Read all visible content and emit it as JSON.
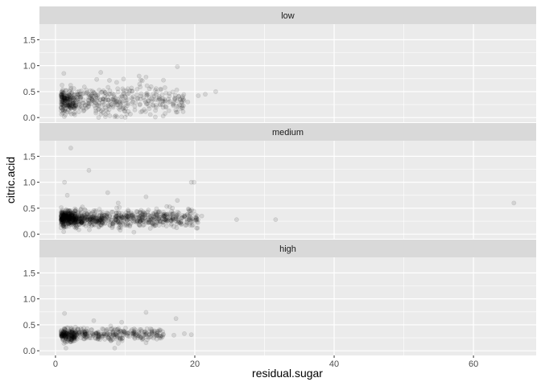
{
  "chart_data": {
    "type": "scatter",
    "facet_by": "quality",
    "xlabel": "residual.sugar",
    "ylabel": "citric.acid",
    "xlim": [
      -2.3,
      69
    ],
    "ylim": [
      -0.09,
      1.8
    ],
    "x_ticks": [
      0,
      20,
      40,
      60
    ],
    "x_tick_labels": [
      "0",
      "20",
      "40",
      "60"
    ],
    "y_ticks": [
      0.0,
      0.5,
      1.0,
      1.5
    ],
    "y_tick_labels": [
      "0.0",
      "0.5",
      "1.0",
      "1.5"
    ],
    "point_alpha": 0.1,
    "grid": true,
    "legend": "none",
    "colors": {
      "panel_background": "#ebebeb",
      "strip_background": "#d9d9d9",
      "grid": "#ffffff",
      "point": "#000000"
    },
    "panels": [
      {
        "label": "low",
        "clusters": [
          {
            "xmin": 0.8,
            "xmax": 2.8,
            "ymean": 0.32,
            "ysd": 0.12,
            "n": 180
          },
          {
            "xmin": 2.8,
            "xmax": 18.5,
            "ymean": 0.33,
            "ysd": 0.15,
            "n": 330
          }
        ],
        "points": [
          [
            17.5,
            0.98
          ],
          [
            6.5,
            0.87
          ],
          [
            1.2,
            0.85
          ],
          [
            13.0,
            0.78
          ],
          [
            21.5,
            0.45
          ],
          [
            23.0,
            0.5
          ],
          [
            20.5,
            0.42
          ],
          [
            19.0,
            0.3
          ],
          [
            12.0,
            0.8
          ],
          [
            15.5,
            0.72
          ]
        ]
      },
      {
        "label": "medium",
        "clusters": [
          {
            "xmin": 0.8,
            "xmax": 2.8,
            "ymean": 0.31,
            "ysd": 0.08,
            "n": 300
          },
          {
            "xmin": 2.8,
            "xmax": 20.5,
            "ymean": 0.3,
            "ysd": 0.08,
            "n": 620
          }
        ],
        "points": [
          [
            2.2,
            1.66
          ],
          [
            4.8,
            1.23
          ],
          [
            1.3,
            1.0
          ],
          [
            19.5,
            1.0
          ],
          [
            19.9,
            1.0
          ],
          [
            26.0,
            0.28
          ],
          [
            31.6,
            0.28
          ],
          [
            65.8,
            0.6
          ],
          [
            7.5,
            0.8
          ],
          [
            1.7,
            0.75
          ],
          [
            13.0,
            0.72
          ],
          [
            17.5,
            0.65
          ],
          [
            9.0,
            0.6
          ],
          [
            21.0,
            0.35
          ]
        ]
      },
      {
        "label": "high",
        "clusters": [
          {
            "xmin": 0.8,
            "xmax": 2.8,
            "ymean": 0.31,
            "ysd": 0.06,
            "n": 170
          },
          {
            "xmin": 2.8,
            "xmax": 15.5,
            "ymean": 0.32,
            "ysd": 0.06,
            "n": 270
          }
        ],
        "points": [
          [
            1.3,
            0.72
          ],
          [
            13.0,
            0.74
          ],
          [
            17.3,
            0.62
          ],
          [
            18.5,
            0.33
          ],
          [
            19.5,
            0.31
          ],
          [
            17.0,
            0.3
          ],
          [
            5.5,
            0.58
          ],
          [
            9.5,
            0.55
          ],
          [
            15.0,
            0.28
          ],
          [
            14.2,
            0.28
          ],
          [
            1.5,
            0.05
          ],
          [
            8.5,
            0.05
          ]
        ]
      }
    ]
  }
}
